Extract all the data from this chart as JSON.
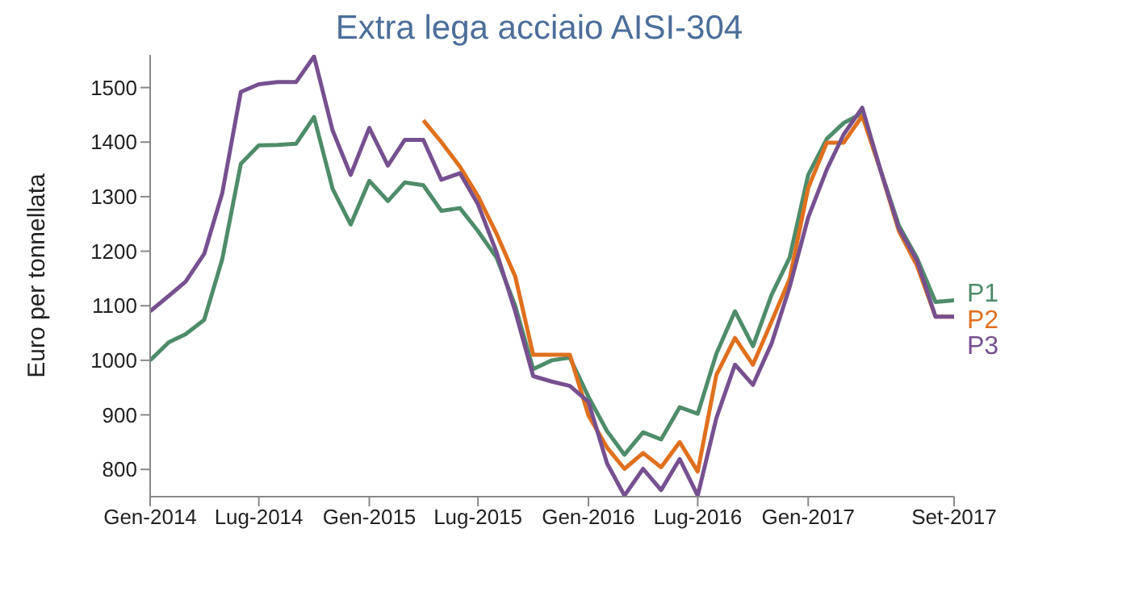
{
  "chart_data": {
    "type": "line",
    "title": "Extra lega acciaio AISI-304",
    "ylabel": "Euro per tonnellata",
    "x": [
      "2014-01",
      "2014-02",
      "2014-03",
      "2014-04",
      "2014-05",
      "2014-06",
      "2014-07",
      "2014-08",
      "2014-09",
      "2014-10",
      "2014-11",
      "2014-12",
      "2015-01",
      "2015-02",
      "2015-03",
      "2015-04",
      "2015-05",
      "2015-06",
      "2015-07",
      "2015-08",
      "2015-09",
      "2015-10",
      "2015-11",
      "2015-12",
      "2016-01",
      "2016-02",
      "2016-03",
      "2016-04",
      "2016-05",
      "2016-06",
      "2016-07",
      "2016-08",
      "2016-09",
      "2016-10",
      "2016-11",
      "2016-12",
      "2017-01",
      "2017-02",
      "2017-03",
      "2017-04",
      "2017-05",
      "2017-06",
      "2017-07",
      "2017-08",
      "2017-09"
    ],
    "series": [
      {
        "name": "P1",
        "color": "#4e8c6a",
        "values": [
          1000,
          1033,
          1048,
          1074,
          1185,
          1360,
          1394,
          1395,
          1397,
          1446,
          1314,
          1249,
          1329,
          1292,
          1326,
          1321,
          1274,
          1279,
          1237,
          1188,
          1100,
          984,
          1000,
          1005,
          933,
          870,
          827,
          868,
          855,
          914,
          902,
          1012,
          1090,
          1026,
          1120,
          1188,
          1340,
          1406,
          1435,
          1453,
          1350,
          1247,
          1188,
          1107,
          1110
        ]
      },
      {
        "name": "P2",
        "color": "#e0701e",
        "values": [
          null,
          null,
          null,
          null,
          null,
          null,
          null,
          null,
          null,
          null,
          null,
          null,
          null,
          null,
          null,
          1440,
          1400,
          1355,
          1301,
          1232,
          1154,
          1010,
          1010,
          1010,
          899,
          840,
          801,
          830,
          804,
          850,
          796,
          973,
          1041,
          992,
          1071,
          1149,
          1316,
          1399,
          1399,
          1448,
          1350,
          1237,
          1174,
          1080,
          1080
        ]
      },
      {
        "name": "P3",
        "color": "#76508f",
        "values": [
          1090,
          1118,
          1144,
          1195,
          1306,
          1492,
          1506,
          1510,
          1510,
          1557,
          1421,
          1340,
          1426,
          1357,
          1404,
          1404,
          1331,
          1343,
          1286,
          1198,
          1090,
          971,
          961,
          953,
          924,
          811,
          752,
          801,
          762,
          819,
          752,
          894,
          992,
          955,
          1031,
          1134,
          1262,
          1350,
          1414,
          1463,
          1350,
          1242,
          1183,
          1080,
          1080
        ]
      }
    ],
    "xlim": [
      "2014-01",
      "2017-09"
    ],
    "xticks": [
      {
        "value": "2014-01",
        "label": "Gen-2014"
      },
      {
        "value": "2014-07",
        "label": "Lug-2014"
      },
      {
        "value": "2015-01",
        "label": "Gen-2015"
      },
      {
        "value": "2015-07",
        "label": "Lug-2015"
      },
      {
        "value": "2016-01",
        "label": "Gen-2016"
      },
      {
        "value": "2016-07",
        "label": "Lug-2016"
      },
      {
        "value": "2017-01",
        "label": "Gen-2017"
      },
      {
        "value": "2017-09",
        "label": "Set-2017"
      }
    ],
    "ylim": [
      750,
      1560
    ],
    "yticks": [
      800,
      900,
      1000,
      1100,
      1200,
      1300,
      1400,
      1500
    ],
    "grid": false,
    "legend": false,
    "marker": "none",
    "line_style": "solid"
  }
}
